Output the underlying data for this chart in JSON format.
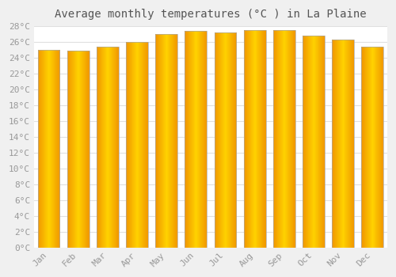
{
  "title": "Average monthly temperatures (°C ) in La Plaine",
  "months": [
    "Jan",
    "Feb",
    "Mar",
    "Apr",
    "May",
    "Jun",
    "Jul",
    "Aug",
    "Sep",
    "Oct",
    "Nov",
    "Dec"
  ],
  "values": [
    25.0,
    24.9,
    25.4,
    26.0,
    27.0,
    27.4,
    27.2,
    27.5,
    27.5,
    26.8,
    26.3,
    25.4
  ],
  "bar_color_center": "#FFD000",
  "bar_color_edge": "#F5A000",
  "bar_edge_color": "#999999",
  "ylim": [
    0,
    28
  ],
  "ytick_step": 2,
  "plot_bg_color": "#ffffff",
  "fig_bg_color": "#f0f0f0",
  "grid_color": "#e0e0e0",
  "title_fontsize": 10,
  "tick_fontsize": 8,
  "title_color": "#555555",
  "tick_color": "#999999"
}
